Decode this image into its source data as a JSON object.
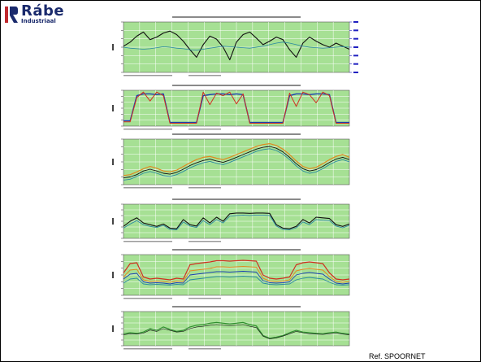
{
  "brand": {
    "name": "Rábe",
    "subtitle": "Industriaal",
    "mark_color": "#c0282d",
    "text_color": "#1a2a6c"
  },
  "reference": "Ref. SPOORNET",
  "colors": {
    "plot_background": "#a6e094",
    "grid": "#ffffff",
    "black_series": "#111111",
    "red_series": "#d03020",
    "orange_series": "#e08a20",
    "blue_series": "#1a3fb0",
    "teal_series": "#2a8aa0",
    "green_series": "#2f8f2f",
    "right_axis_text": "#2020c0"
  },
  "side_labels": [
    "",
    "",
    "",
    "",
    ""
  ],
  "chart_data": [
    {
      "type": "line",
      "title": "",
      "series": [
        {
          "values": [
            0.52,
            0.6,
            0.72,
            0.8,
            0.65,
            0.7,
            0.78,
            0.82,
            0.75,
            0.62,
            0.45,
            0.3,
            0.55,
            0.72,
            0.66,
            0.5,
            0.25,
            0.6,
            0.75,
            0.8,
            0.68,
            0.55,
            0.62,
            0.7,
            0.65,
            0.45,
            0.3,
            0.58,
            0.7,
            0.62,
            0.55,
            0.5,
            0.58,
            0.52,
            0.46
          ]
        },
        {
          "values": [
            0.5,
            0.48,
            0.47,
            0.46,
            0.47,
            0.49,
            0.51,
            0.5,
            0.48,
            0.47,
            0.45,
            0.44,
            0.46,
            0.48,
            0.5,
            0.52,
            0.51,
            0.5,
            0.49,
            0.48,
            0.5,
            0.52,
            0.55,
            0.58,
            0.6,
            0.58,
            0.55,
            0.52,
            0.5,
            0.49,
            0.48,
            0.49,
            0.5,
            0.51,
            0.5
          ]
        }
      ]
    },
    {
      "type": "line",
      "title": "",
      "series": [
        {
          "values": [
            0.15,
            0.15,
            0.85,
            0.9,
            0.9,
            0.88,
            0.9,
            0.1,
            0.1,
            0.1,
            0.1,
            0.1,
            0.85,
            0.88,
            0.9,
            0.9,
            0.88,
            0.9,
            0.88,
            0.1,
            0.1,
            0.1,
            0.1,
            0.1,
            0.1,
            0.85,
            0.9,
            0.9,
            0.88,
            0.9,
            0.9,
            0.88,
            0.1,
            0.1,
            0.1
          ]
        },
        {
          "values": [
            0.12,
            0.12,
            0.8,
            0.95,
            0.7,
            0.95,
            0.85,
            0.08,
            0.08,
            0.08,
            0.08,
            0.08,
            0.95,
            0.6,
            0.92,
            0.85,
            0.95,
            0.62,
            0.9,
            0.08,
            0.08,
            0.08,
            0.08,
            0.08,
            0.08,
            0.92,
            0.55,
            0.95,
            0.88,
            0.65,
            0.95,
            0.85,
            0.08,
            0.08,
            0.08
          ]
        }
      ]
    },
    {
      "type": "line",
      "title": "",
      "series": [
        {
          "values": [
            0.2,
            0.22,
            0.28,
            0.35,
            0.4,
            0.36,
            0.3,
            0.28,
            0.32,
            0.4,
            0.48,
            0.55,
            0.6,
            0.62,
            0.58,
            0.55,
            0.6,
            0.66,
            0.72,
            0.78,
            0.84,
            0.88,
            0.9,
            0.86,
            0.78,
            0.66,
            0.52,
            0.4,
            0.35,
            0.38,
            0.46,
            0.55,
            0.62,
            0.66,
            0.6
          ]
        },
        {
          "values": [
            0.15,
            0.17,
            0.22,
            0.3,
            0.34,
            0.3,
            0.25,
            0.23,
            0.27,
            0.34,
            0.42,
            0.48,
            0.53,
            0.56,
            0.52,
            0.49,
            0.54,
            0.6,
            0.66,
            0.72,
            0.78,
            0.82,
            0.84,
            0.8,
            0.72,
            0.6,
            0.46,
            0.35,
            0.3,
            0.33,
            0.4,
            0.49,
            0.56,
            0.6,
            0.55
          ]
        },
        {
          "values": [
            0.1,
            0.12,
            0.18,
            0.25,
            0.29,
            0.25,
            0.2,
            0.18,
            0.22,
            0.29,
            0.37,
            0.43,
            0.48,
            0.51,
            0.47,
            0.44,
            0.49,
            0.55,
            0.61,
            0.67,
            0.73,
            0.77,
            0.79,
            0.75,
            0.67,
            0.55,
            0.41,
            0.3,
            0.25,
            0.28,
            0.35,
            0.44,
            0.51,
            0.55,
            0.5
          ]
        }
      ]
    },
    {
      "type": "line",
      "title": "",
      "series": [
        {
          "values": [
            0.35,
            0.5,
            0.6,
            0.45,
            0.4,
            0.35,
            0.42,
            0.3,
            0.28,
            0.55,
            0.4,
            0.36,
            0.6,
            0.45,
            0.62,
            0.5,
            0.72,
            0.74,
            0.74,
            0.73,
            0.74,
            0.74,
            0.73,
            0.4,
            0.3,
            0.28,
            0.35,
            0.55,
            0.45,
            0.62,
            0.6,
            0.58,
            0.4,
            0.35,
            0.42
          ]
        },
        {
          "values": [
            0.3,
            0.42,
            0.52,
            0.4,
            0.35,
            0.32,
            0.38,
            0.26,
            0.25,
            0.48,
            0.36,
            0.32,
            0.52,
            0.4,
            0.55,
            0.45,
            0.65,
            0.67,
            0.68,
            0.67,
            0.68,
            0.68,
            0.67,
            0.36,
            0.26,
            0.25,
            0.31,
            0.48,
            0.4,
            0.55,
            0.53,
            0.52,
            0.36,
            0.31,
            0.38
          ]
        }
      ]
    },
    {
      "type": "line",
      "title": "",
      "series": [
        {
          "values": [
            0.55,
            0.78,
            0.8,
            0.45,
            0.4,
            0.42,
            0.4,
            0.38,
            0.42,
            0.4,
            0.75,
            0.78,
            0.8,
            0.82,
            0.85,
            0.85,
            0.84,
            0.85,
            0.86,
            0.85,
            0.84,
            0.5,
            0.42,
            0.4,
            0.42,
            0.45,
            0.75,
            0.8,
            0.82,
            0.8,
            0.78,
            0.55,
            0.4,
            0.38,
            0.4
          ]
        },
        {
          "values": [
            0.45,
            0.62,
            0.64,
            0.38,
            0.34,
            0.35,
            0.34,
            0.32,
            0.35,
            0.34,
            0.6,
            0.62,
            0.64,
            0.66,
            0.7,
            0.7,
            0.69,
            0.7,
            0.71,
            0.7,
            0.69,
            0.42,
            0.35,
            0.34,
            0.35,
            0.38,
            0.6,
            0.64,
            0.66,
            0.64,
            0.62,
            0.46,
            0.34,
            0.32,
            0.34
          ]
        },
        {
          "values": [
            0.4,
            0.52,
            0.54,
            0.33,
            0.3,
            0.31,
            0.3,
            0.28,
            0.31,
            0.3,
            0.5,
            0.52,
            0.54,
            0.56,
            0.58,
            0.58,
            0.57,
            0.58,
            0.59,
            0.58,
            0.57,
            0.36,
            0.31,
            0.3,
            0.31,
            0.33,
            0.5,
            0.54,
            0.56,
            0.54,
            0.52,
            0.4,
            0.3,
            0.28,
            0.3
          ]
        },
        {
          "values": [
            0.3,
            0.4,
            0.42,
            0.28,
            0.26,
            0.27,
            0.26,
            0.25,
            0.27,
            0.26,
            0.38,
            0.4,
            0.42,
            0.44,
            0.46,
            0.46,
            0.45,
            0.46,
            0.47,
            0.46,
            0.45,
            0.3,
            0.27,
            0.26,
            0.27,
            0.28,
            0.38,
            0.42,
            0.44,
            0.42,
            0.4,
            0.32,
            0.26,
            0.25,
            0.26
          ]
        }
      ]
    },
    {
      "type": "line",
      "title": "",
      "series": [
        {
          "values": [
            0.35,
            0.38,
            0.36,
            0.4,
            0.5,
            0.45,
            0.55,
            0.48,
            0.42,
            0.45,
            0.55,
            0.6,
            0.62,
            0.66,
            0.68,
            0.66,
            0.64,
            0.66,
            0.68,
            0.62,
            0.58,
            0.3,
            0.22,
            0.25,
            0.3,
            0.38,
            0.45,
            0.4,
            0.38,
            0.36,
            0.35,
            0.38,
            0.4,
            0.36,
            0.34
          ]
        },
        {
          "values": [
            0.32,
            0.35,
            0.34,
            0.37,
            0.46,
            0.42,
            0.5,
            0.45,
            0.4,
            0.42,
            0.5,
            0.55,
            0.57,
            0.6,
            0.62,
            0.6,
            0.59,
            0.6,
            0.62,
            0.57,
            0.53,
            0.28,
            0.2,
            0.23,
            0.28,
            0.35,
            0.42,
            0.38,
            0.35,
            0.34,
            0.33,
            0.35,
            0.37,
            0.34,
            0.32
          ]
        }
      ]
    }
  ]
}
